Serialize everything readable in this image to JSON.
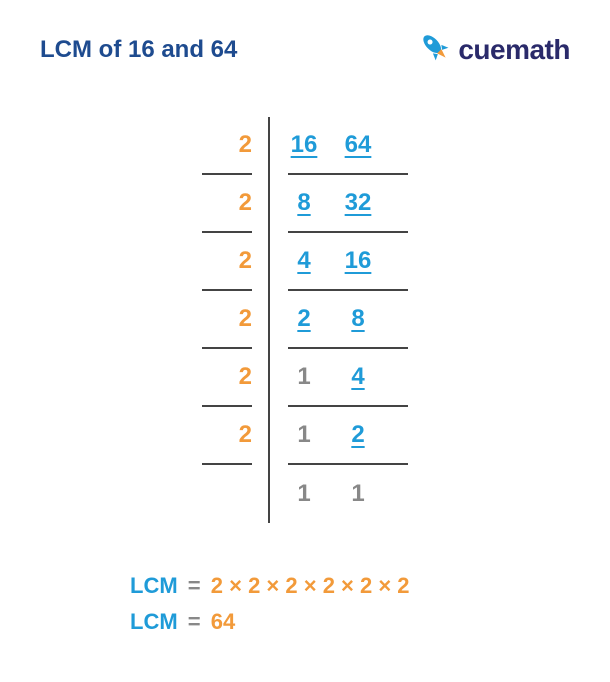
{
  "title": "LCM of 16 and 64",
  "logo": {
    "text": "cuemath",
    "rocket_color": "#1f9bd8",
    "flame_color": "#f29a3a"
  },
  "colors": {
    "title": "#1e4b8f",
    "divisor": "#f29a3a",
    "link_number": "#1f9bd8",
    "plain_number": "#888888",
    "border": "#444444",
    "lcm_label": "#1f9bd8",
    "lcm_value": "#f29a3a",
    "eq": "#888888",
    "logo_text": "#2a2a6a"
  },
  "table": {
    "rows": [
      {
        "divisor": "2",
        "a": "16",
        "a_link": true,
        "b": "64",
        "b_link": true
      },
      {
        "divisor": "2",
        "a": "8",
        "a_link": true,
        "b": "32",
        "b_link": true
      },
      {
        "divisor": "2",
        "a": "4",
        "a_link": true,
        "b": "16",
        "b_link": true
      },
      {
        "divisor": "2",
        "a": "2",
        "a_link": true,
        "b": "8",
        "b_link": true
      },
      {
        "divisor": "2",
        "a": "1",
        "a_link": false,
        "b": "4",
        "b_link": true
      },
      {
        "divisor": "2",
        "a": "1",
        "a_link": false,
        "b": "2",
        "b_link": true
      },
      {
        "divisor": "",
        "a": "1",
        "a_link": false,
        "b": "1",
        "b_link": false
      }
    ]
  },
  "result": {
    "label": "LCM",
    "eq": "=",
    "expression": "2 × 2 × 2 × 2 × 2 × 2",
    "value": "64"
  }
}
